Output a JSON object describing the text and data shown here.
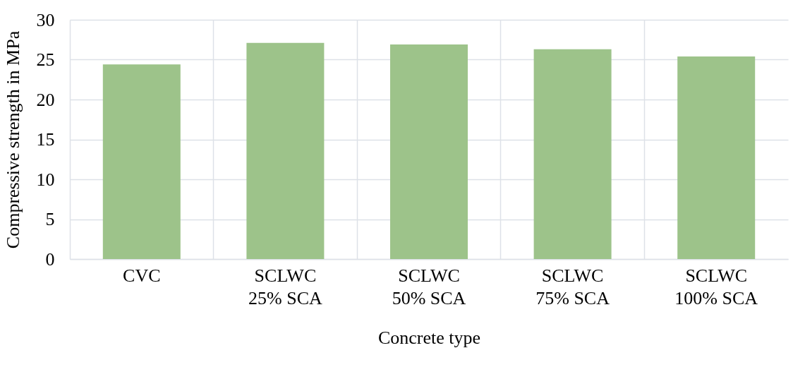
{
  "chart_data": {
    "type": "bar",
    "xlabel": "Concrete type",
    "ylabel": "Compressive strength in MPa",
    "categories": [
      "CVC",
      "SCLWC\n25% SCA",
      "SCLWC\n50% SCA",
      "SCLWC\n75% SCA",
      "SCLWC\n100% SCA"
    ],
    "values": [
      24.4,
      27.1,
      26.9,
      26.3,
      25.4
    ],
    "color": "#9dc38a",
    "ylim": [
      0,
      30
    ],
    "yticks": [
      0,
      5,
      10,
      15,
      20,
      25,
      30
    ],
    "grid": true
  }
}
